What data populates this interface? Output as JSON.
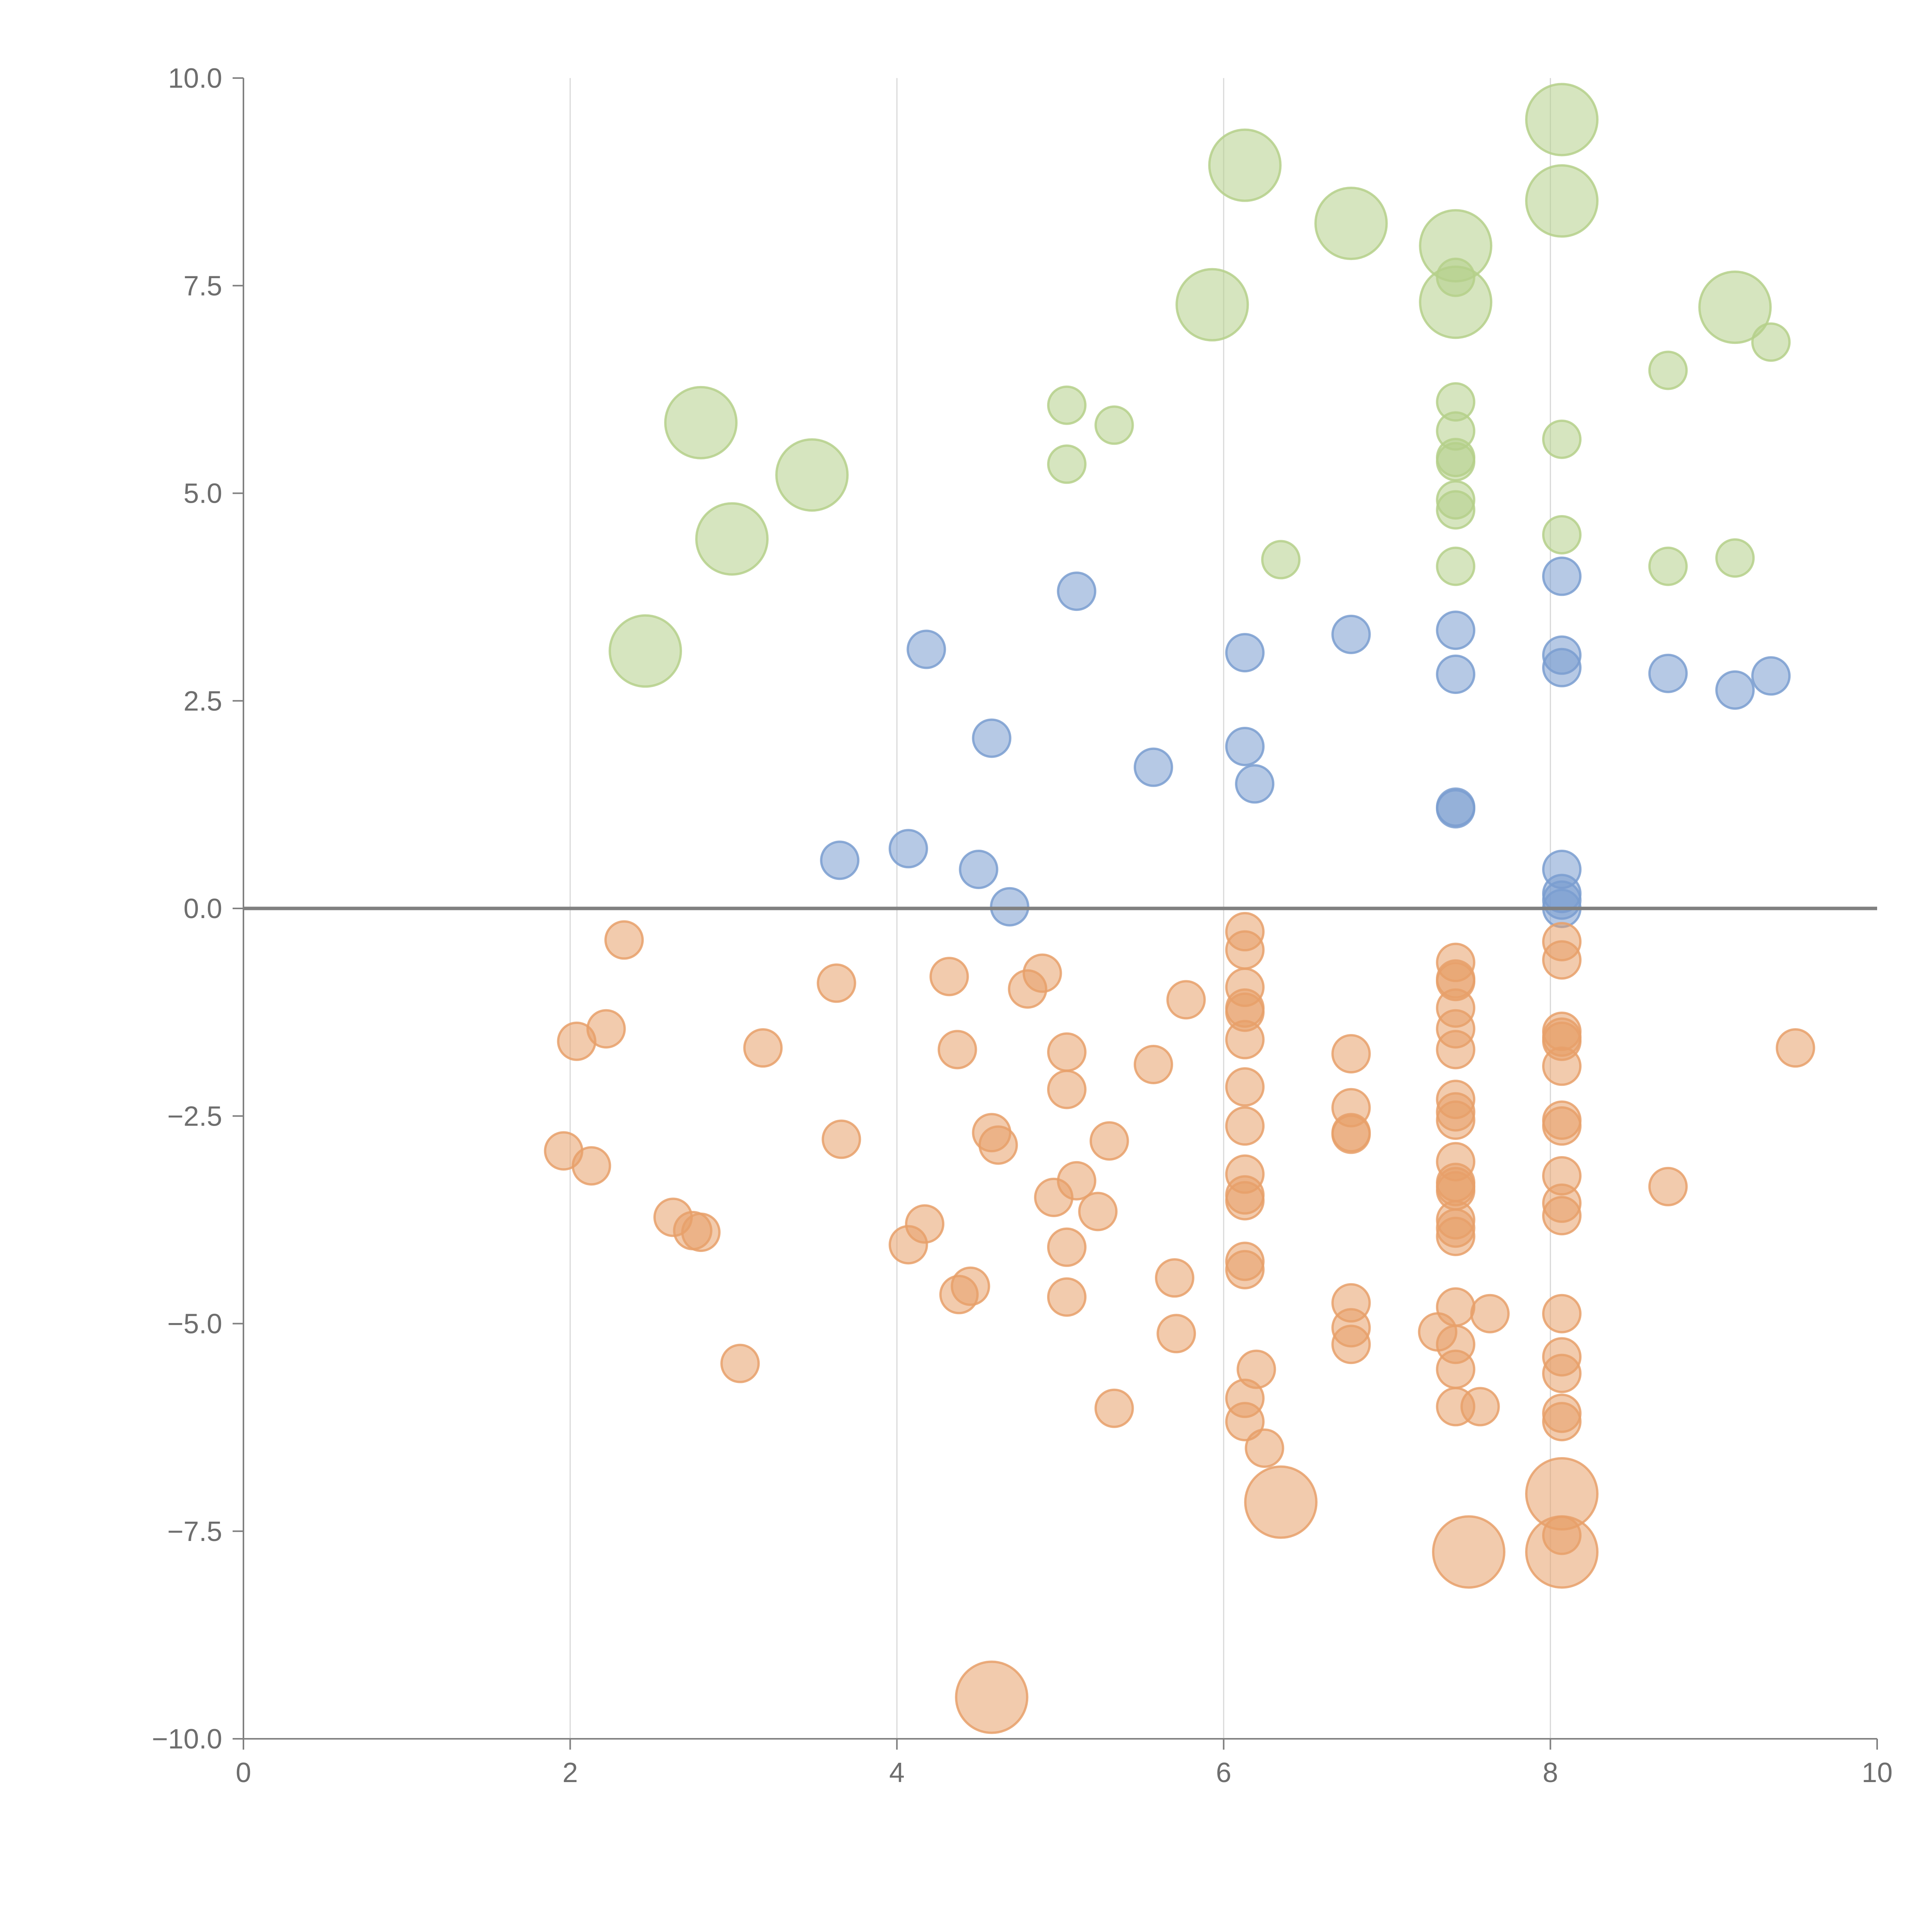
{
  "chart_data": {
    "type": "scatter",
    "title": "",
    "xlabel": "",
    "ylabel": "",
    "xlim": [
      0,
      10
    ],
    "ylim": [
      -10,
      10
    ],
    "x_ticks": [
      "0",
      "2",
      "4",
      "6",
      "8",
      "10"
    ],
    "y_ticks": [
      "10.0",
      "7.5",
      "5.0",
      "2.5",
      "0.0",
      "−2.5",
      "−5.0",
      "−7.5",
      "−10.0"
    ],
    "x_grid": [
      2,
      4,
      6,
      8
    ],
    "reference_line_y": 0,
    "colors": {
      "green": "#b5d08a",
      "blue": "#7a9dd0",
      "orange": "#e8a06a",
      "axis": "#808080",
      "grid": "#d9d9d9",
      "label": "#6e6e6e"
    },
    "series": [
      {
        "name": "green",
        "color": "#b5d08a",
        "points": [
          {
            "x": 8.07,
            "y": 9.5,
            "size": 3
          },
          {
            "x": 6.13,
            "y": 8.95,
            "size": 3
          },
          {
            "x": 6.78,
            "y": 8.25,
            "size": 3
          },
          {
            "x": 8.07,
            "y": 8.52,
            "size": 3
          },
          {
            "x": 7.42,
            "y": 7.98,
            "size": 3
          },
          {
            "x": 7.42,
            "y": 7.3,
            "size": 3
          },
          {
            "x": 7.42,
            "y": 7.6,
            "size": 1
          },
          {
            "x": 5.93,
            "y": 7.27,
            "size": 3
          },
          {
            "x": 9.13,
            "y": 7.24,
            "size": 3
          },
          {
            "x": 9.35,
            "y": 6.82,
            "size": 1
          },
          {
            "x": 8.72,
            "y": 6.48,
            "size": 1
          },
          {
            "x": 5.04,
            "y": 6.06,
            "size": 1
          },
          {
            "x": 7.42,
            "y": 6.1,
            "size": 1
          },
          {
            "x": 2.8,
            "y": 5.85,
            "size": 3
          },
          {
            "x": 5.33,
            "y": 5.82,
            "size": 1
          },
          {
            "x": 7.42,
            "y": 5.75,
            "size": 1
          },
          {
            "x": 8.07,
            "y": 5.65,
            "size": 1
          },
          {
            "x": 7.42,
            "y": 5.43,
            "size": 1
          },
          {
            "x": 7.42,
            "y": 5.38,
            "size": 1
          },
          {
            "x": 5.04,
            "y": 5.35,
            "size": 1
          },
          {
            "x": 3.48,
            "y": 5.22,
            "size": 3
          },
          {
            "x": 7.42,
            "y": 4.92,
            "size": 1
          },
          {
            "x": 7.42,
            "y": 4.8,
            "size": 1
          },
          {
            "x": 8.07,
            "y": 4.5,
            "size": 1
          },
          {
            "x": 2.99,
            "y": 4.45,
            "size": 3
          },
          {
            "x": 9.13,
            "y": 4.22,
            "size": 1
          },
          {
            "x": 6.35,
            "y": 4.2,
            "size": 1
          },
          {
            "x": 7.42,
            "y": 4.12,
            "size": 1
          },
          {
            "x": 8.72,
            "y": 4.12,
            "size": 1
          },
          {
            "x": 2.46,
            "y": 3.1,
            "size": 3
          }
        ]
      },
      {
        "name": "blue",
        "color": "#7a9dd0",
        "points": [
          {
            "x": 8.07,
            "y": 4.0,
            "size": 1
          },
          {
            "x": 5.1,
            "y": 3.82,
            "size": 1
          },
          {
            "x": 7.42,
            "y": 3.35,
            "size": 1
          },
          {
            "x": 6.78,
            "y": 3.3,
            "size": 1
          },
          {
            "x": 4.18,
            "y": 3.12,
            "size": 1
          },
          {
            "x": 6.13,
            "y": 3.08,
            "size": 1
          },
          {
            "x": 8.07,
            "y": 3.05,
            "size": 1
          },
          {
            "x": 8.07,
            "y": 2.9,
            "size": 1
          },
          {
            "x": 7.42,
            "y": 2.82,
            "size": 1
          },
          {
            "x": 8.72,
            "y": 2.83,
            "size": 1
          },
          {
            "x": 9.35,
            "y": 2.8,
            "size": 1
          },
          {
            "x": 9.13,
            "y": 2.63,
            "size": 1
          },
          {
            "x": 4.58,
            "y": 2.05,
            "size": 1
          },
          {
            "x": 6.13,
            "y": 1.95,
            "size": 1
          },
          {
            "x": 5.57,
            "y": 1.7,
            "size": 1
          },
          {
            "x": 6.19,
            "y": 1.5,
            "size": 1
          },
          {
            "x": 7.42,
            "y": 1.22,
            "size": 1
          },
          {
            "x": 7.42,
            "y": 1.2,
            "size": 1
          },
          {
            "x": 4.07,
            "y": 0.72,
            "size": 1
          },
          {
            "x": 3.65,
            "y": 0.58,
            "size": 1
          },
          {
            "x": 8.07,
            "y": 0.47,
            "size": 1
          },
          {
            "x": 4.5,
            "y": 0.47,
            "size": 1
          },
          {
            "x": 8.07,
            "y": 0.18,
            "size": 1
          },
          {
            "x": 8.07,
            "y": 0.1,
            "size": 1
          },
          {
            "x": 4.69,
            "y": 0.02,
            "size": 1
          },
          {
            "x": 8.07,
            "y": 0.0,
            "size": 1
          }
        ]
      },
      {
        "name": "orange",
        "color": "#e8a06a",
        "points": [
          {
            "x": 6.13,
            "y": -0.28,
            "size": 1
          },
          {
            "x": 2.33,
            "y": -0.38,
            "size": 1
          },
          {
            "x": 8.07,
            "y": -0.4,
            "size": 1
          },
          {
            "x": 6.13,
            "y": -0.5,
            "size": 1
          },
          {
            "x": 8.07,
            "y": -0.62,
            "size": 1
          },
          {
            "x": 7.42,
            "y": -0.65,
            "size": 1
          },
          {
            "x": 4.89,
            "y": -0.78,
            "size": 1
          },
          {
            "x": 4.32,
            "y": -0.82,
            "size": 1
          },
          {
            "x": 7.42,
            "y": -0.85,
            "size": 1
          },
          {
            "x": 7.42,
            "y": -0.88,
            "size": 1
          },
          {
            "x": 3.63,
            "y": -0.9,
            "size": 1
          },
          {
            "x": 6.13,
            "y": -0.95,
            "size": 1
          },
          {
            "x": 4.8,
            "y": -0.97,
            "size": 1
          },
          {
            "x": 5.77,
            "y": -1.1,
            "size": 1
          },
          {
            "x": 7.42,
            "y": -1.2,
            "size": 1
          },
          {
            "x": 6.13,
            "y": -1.2,
            "size": 1
          },
          {
            "x": 6.13,
            "y": -1.25,
            "size": 1
          },
          {
            "x": 2.22,
            "y": -1.45,
            "size": 1
          },
          {
            "x": 7.42,
            "y": -1.45,
            "size": 1
          },
          {
            "x": 8.07,
            "y": -1.48,
            "size": 1
          },
          {
            "x": 8.07,
            "y": -1.55,
            "size": 1
          },
          {
            "x": 6.13,
            "y": -1.58,
            "size": 1
          },
          {
            "x": 2.04,
            "y": -1.6,
            "size": 1
          },
          {
            "x": 8.07,
            "y": -1.6,
            "size": 1
          },
          {
            "x": 3.18,
            "y": -1.68,
            "size": 1
          },
          {
            "x": 9.5,
            "y": -1.68,
            "size": 1
          },
          {
            "x": 4.37,
            "y": -1.7,
            "size": 1
          },
          {
            "x": 7.42,
            "y": -1.7,
            "size": 1
          },
          {
            "x": 5.04,
            "y": -1.73,
            "size": 1
          },
          {
            "x": 6.78,
            "y": -1.75,
            "size": 1
          },
          {
            "x": 5.57,
            "y": -1.88,
            "size": 1
          },
          {
            "x": 8.07,
            "y": -1.9,
            "size": 1
          },
          {
            "x": 6.13,
            "y": -2.15,
            "size": 1
          },
          {
            "x": 5.04,
            "y": -2.18,
            "size": 1
          },
          {
            "x": 7.42,
            "y": -2.3,
            "size": 1
          },
          {
            "x": 6.78,
            "y": -2.4,
            "size": 1
          },
          {
            "x": 7.42,
            "y": -2.45,
            "size": 1
          },
          {
            "x": 7.42,
            "y": -2.55,
            "size": 1
          },
          {
            "x": 8.07,
            "y": -2.55,
            "size": 1
          },
          {
            "x": 6.13,
            "y": -2.62,
            "size": 1
          },
          {
            "x": 8.07,
            "y": -2.62,
            "size": 1
          },
          {
            "x": 4.58,
            "y": -2.7,
            "size": 1
          },
          {
            "x": 6.78,
            "y": -2.7,
            "size": 1
          },
          {
            "x": 6.78,
            "y": -2.72,
            "size": 1
          },
          {
            "x": 3.66,
            "y": -2.78,
            "size": 1
          },
          {
            "x": 5.3,
            "y": -2.8,
            "size": 1
          },
          {
            "x": 4.62,
            "y": -2.85,
            "size": 1
          },
          {
            "x": 1.96,
            "y": -2.92,
            "size": 1
          },
          {
            "x": 7.42,
            "y": -3.05,
            "size": 1
          },
          {
            "x": 2.13,
            "y": -3.1,
            "size": 1
          },
          {
            "x": 6.13,
            "y": -3.2,
            "size": 1
          },
          {
            "x": 8.07,
            "y": -3.22,
            "size": 1
          },
          {
            "x": 5.1,
            "y": -3.28,
            "size": 1
          },
          {
            "x": 7.42,
            "y": -3.3,
            "size": 1
          },
          {
            "x": 7.42,
            "y": -3.35,
            "size": 1
          },
          {
            "x": 8.72,
            "y": -3.35,
            "size": 1
          },
          {
            "x": 7.42,
            "y": -3.4,
            "size": 1
          },
          {
            "x": 6.13,
            "y": -3.45,
            "size": 1
          },
          {
            "x": 4.96,
            "y": -3.48,
            "size": 1
          },
          {
            "x": 6.13,
            "y": -3.52,
            "size": 1
          },
          {
            "x": 8.07,
            "y": -3.55,
            "size": 1
          },
          {
            "x": 5.23,
            "y": -3.65,
            "size": 1
          },
          {
            "x": 8.07,
            "y": -3.7,
            "size": 1
          },
          {
            "x": 2.63,
            "y": -3.72,
            "size": 1
          },
          {
            "x": 7.42,
            "y": -3.75,
            "size": 1
          },
          {
            "x": 4.17,
            "y": -3.8,
            "size": 1
          },
          {
            "x": 7.42,
            "y": -3.85,
            "size": 1
          },
          {
            "x": 2.75,
            "y": -3.88,
            "size": 1
          },
          {
            "x": 2.8,
            "y": -3.9,
            "size": 1
          },
          {
            "x": 7.42,
            "y": -3.95,
            "size": 1
          },
          {
            "x": 4.07,
            "y": -4.05,
            "size": 1
          },
          {
            "x": 5.04,
            "y": -4.08,
            "size": 1
          },
          {
            "x": 6.13,
            "y": -4.25,
            "size": 1
          },
          {
            "x": 6.13,
            "y": -4.35,
            "size": 1
          },
          {
            "x": 5.7,
            "y": -4.45,
            "size": 1
          },
          {
            "x": 4.45,
            "y": -4.55,
            "size": 1
          },
          {
            "x": 4.38,
            "y": -4.65,
            "size": 1
          },
          {
            "x": 5.04,
            "y": -4.68,
            "size": 1
          },
          {
            "x": 6.78,
            "y": -4.75,
            "size": 1
          },
          {
            "x": 7.42,
            "y": -4.8,
            "size": 1
          },
          {
            "x": 7.63,
            "y": -4.88,
            "size": 1
          },
          {
            "x": 8.07,
            "y": -4.88,
            "size": 1
          },
          {
            "x": 6.78,
            "y": -5.05,
            "size": 1
          },
          {
            "x": 7.31,
            "y": -5.1,
            "size": 1
          },
          {
            "x": 5.71,
            "y": -5.12,
            "size": 1
          },
          {
            "x": 6.78,
            "y": -5.25,
            "size": 1
          },
          {
            "x": 7.42,
            "y": -5.25,
            "size": 1
          },
          {
            "x": 8.07,
            "y": -5.4,
            "size": 1
          },
          {
            "x": 3.04,
            "y": -5.48,
            "size": 1
          },
          {
            "x": 6.2,
            "y": -5.55,
            "size": 1
          },
          {
            "x": 7.42,
            "y": -5.55,
            "size": 1
          },
          {
            "x": 8.07,
            "y": -5.6,
            "size": 1
          },
          {
            "x": 6.13,
            "y": -5.9,
            "size": 1
          },
          {
            "x": 7.42,
            "y": -6.0,
            "size": 1
          },
          {
            "x": 7.57,
            "y": -6.0,
            "size": 1
          },
          {
            "x": 5.33,
            "y": -6.02,
            "size": 1
          },
          {
            "x": 8.07,
            "y": -6.08,
            "size": 1
          },
          {
            "x": 6.13,
            "y": -6.18,
            "size": 1
          },
          {
            "x": 8.07,
            "y": -6.18,
            "size": 1
          },
          {
            "x": 6.25,
            "y": -6.5,
            "size": 1
          },
          {
            "x": 8.07,
            "y": -7.05,
            "size": 3
          },
          {
            "x": 6.35,
            "y": -7.15,
            "size": 3
          },
          {
            "x": 8.07,
            "y": -7.55,
            "size": 1
          },
          {
            "x": 7.5,
            "y": -7.75,
            "size": 3
          },
          {
            "x": 8.07,
            "y": -7.75,
            "size": 3
          },
          {
            "x": 4.58,
            "y": -9.5,
            "size": 3
          }
        ]
      }
    ]
  }
}
